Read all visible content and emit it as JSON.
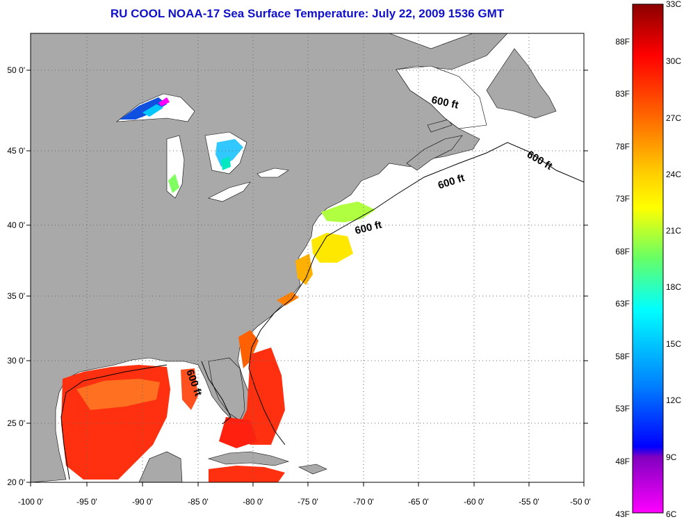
{
  "title": "RU COOL  NOAA-17  Sea Surface Temperature:  July 22, 2009 1536 GMT",
  "axes": {
    "lon_ticks": [
      "-100 0'",
      "-95 0'",
      "-90 0'",
      "-85 0'",
      "-80 0'",
      "-75 0'",
      "-70 0'",
      "-65 0'",
      "-60 0'",
      "-55 0'",
      "-50 0'"
    ],
    "lat_ticks": [
      "50 0'",
      "45 0'",
      "40 0'",
      "35 0'",
      "30 0'",
      "25 0'",
      "20 0'"
    ]
  },
  "contour_labels": [
    "600 ft",
    "600 ft",
    "600 ft",
    "600 ft",
    "600 ft"
  ],
  "colorbar": {
    "celsius_labels": [
      "33C",
      "30C",
      "27C",
      "24C",
      "21C",
      "18C",
      "15C",
      "12C",
      "9C",
      "6C"
    ],
    "fahrenheit_labels": [
      "88F",
      "83F",
      "78F",
      "73F",
      "68F",
      "63F",
      "58F",
      "53F",
      "48F",
      "43F"
    ],
    "celsius_range": [
      6,
      33
    ],
    "colors_top_to_bottom": [
      "#8b0000",
      "#ff0000",
      "#ff6600",
      "#ffcc00",
      "#ffff00",
      "#66ff66",
      "#00ffff",
      "#0080ff",
      "#0000ff",
      "#8000c0",
      "#ff00ff"
    ]
  },
  "colors": {
    "land": "#a9a9a9",
    "ocean_no_data": "#ffffff",
    "title": "#1010c8"
  }
}
